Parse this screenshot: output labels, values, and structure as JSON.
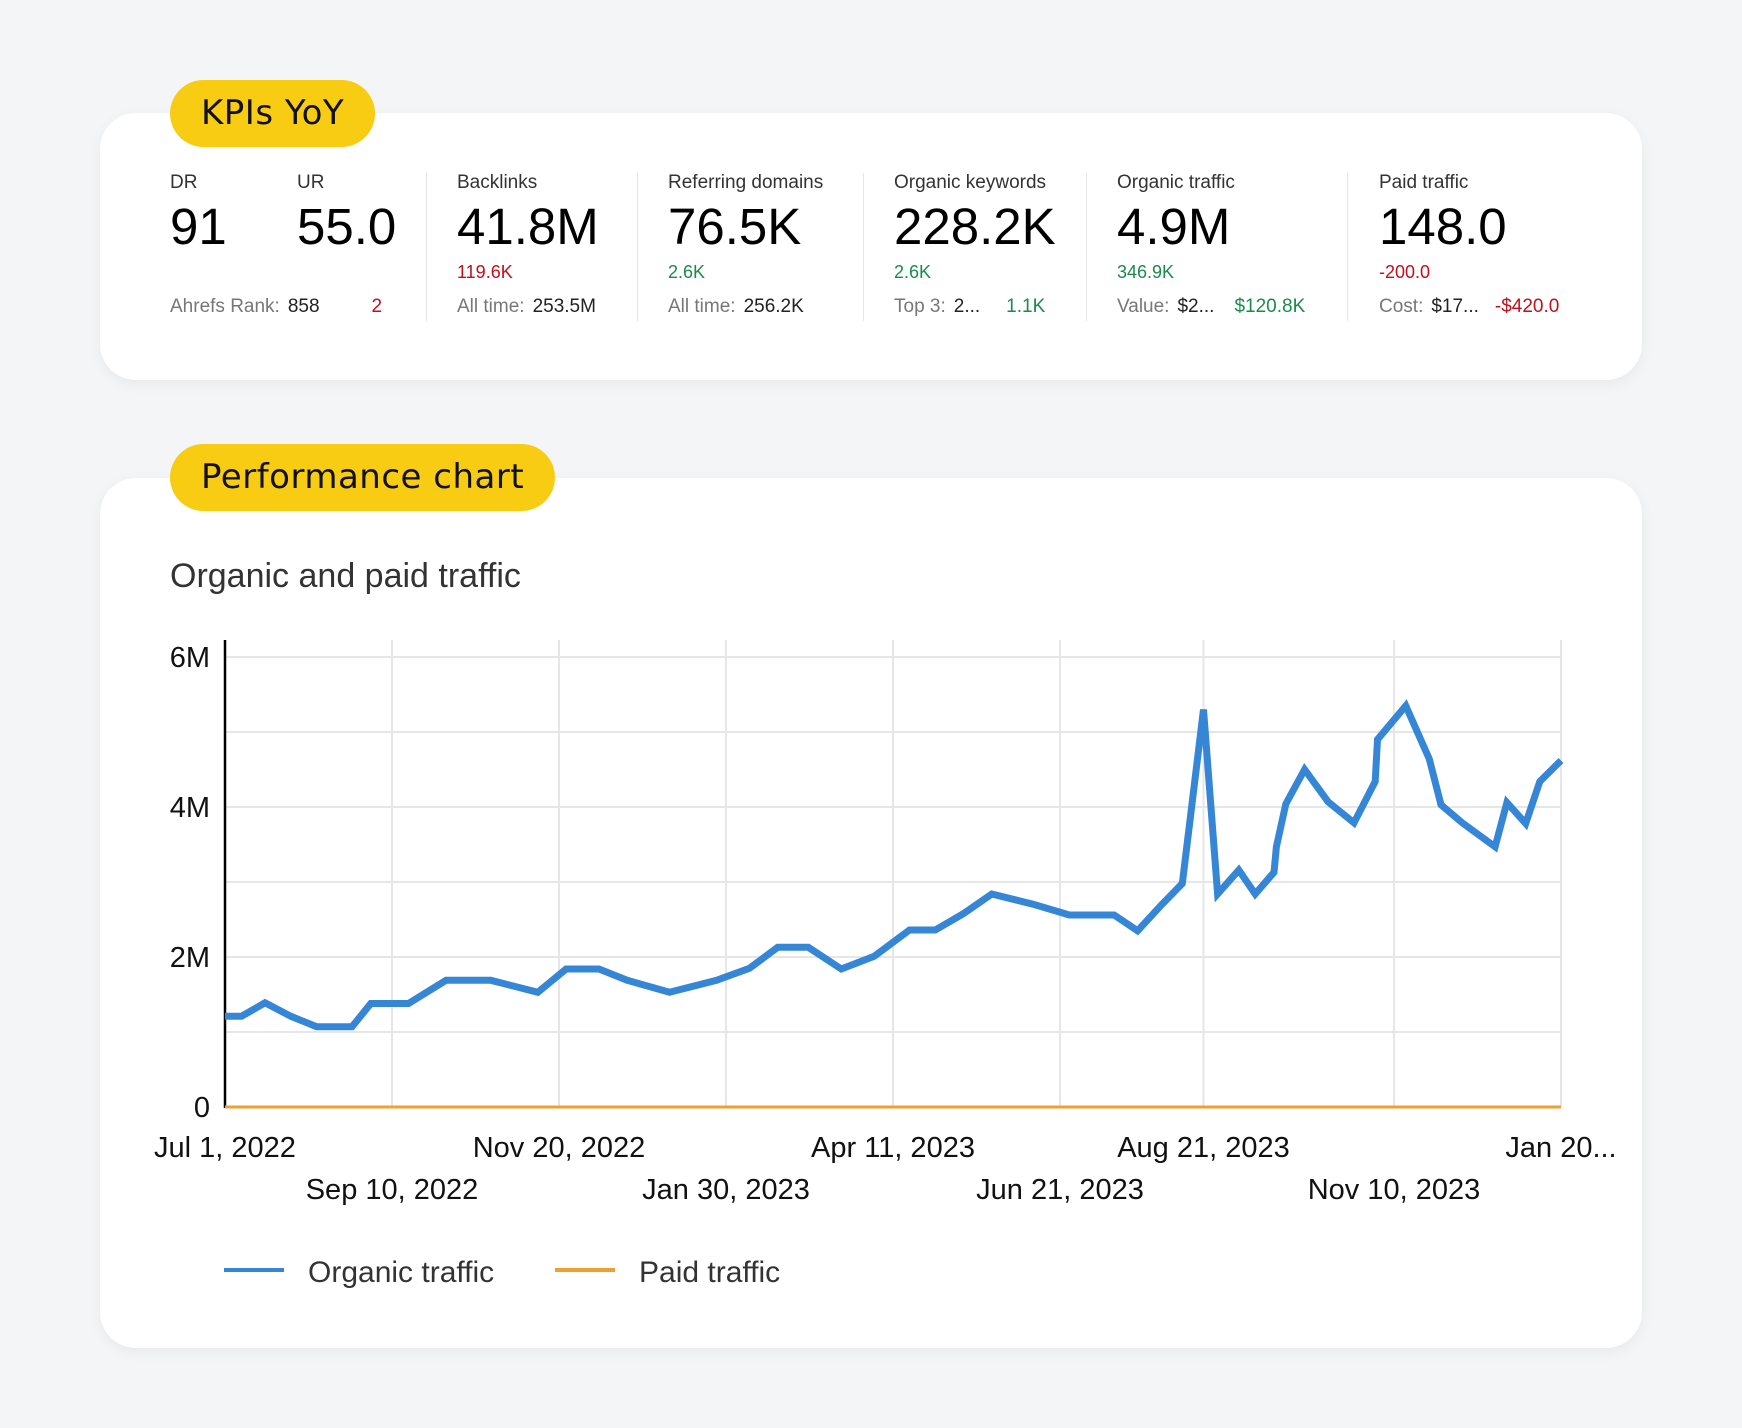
{
  "kpis": {
    "badge": "KPIs YoY",
    "dr": {
      "label": "DR",
      "value": "91"
    },
    "ur": {
      "label": "UR",
      "value": "55.0"
    },
    "ahrefs_rank": {
      "label": "Ahrefs Rank:",
      "value": "858",
      "delta": "2",
      "delta_color": "red"
    },
    "backlinks": {
      "label": "Backlinks",
      "value": "41.8M",
      "delta": "119.6K",
      "foot_label": "All time:",
      "foot_value": "253.5M"
    },
    "referring_domains": {
      "label": "Referring domains",
      "value": "76.5K",
      "delta": "2.6K",
      "foot_label": "All time:",
      "foot_value": "256.2K"
    },
    "organic_keywords": {
      "label": "Organic keywords",
      "value": "228.2K",
      "delta": "2.6K",
      "foot_label": "Top 3:",
      "foot_value": "2...",
      "foot_delta": "1.1K"
    },
    "organic_traffic": {
      "label": "Organic traffic",
      "value": "4.9M",
      "delta": "346.9K",
      "foot_label": "Value:",
      "foot_value": "$2...",
      "foot_delta": "$120.8K"
    },
    "paid_traffic": {
      "label": "Paid traffic",
      "value": "148.0",
      "delta": "-200.0",
      "foot_label": "Cost:",
      "foot_value": "$17...",
      "foot_delta": "-$420.0"
    },
    "colors": {
      "negative": "#c0101c",
      "positive": "#1b8a4c",
      "badge": "#f8cc12"
    }
  },
  "performance": {
    "badge": "Performance chart"
  },
  "chart_data": {
    "type": "line",
    "title": "Organic and paid traffic",
    "x_type": "date",
    "xlim": [
      "2022-07-01",
      "2024-01-20"
    ],
    "ylim": [
      0,
      6000000
    ],
    "y_ticks": [
      {
        "value": 0,
        "label": "0"
      },
      {
        "value": 2000000,
        "label": "2M"
      },
      {
        "value": 4000000,
        "label": "4M"
      },
      {
        "value": 6000000,
        "label": "6M"
      }
    ],
    "y_grid_step": 1000000,
    "x_ticks": [
      {
        "date": "2022-07-01",
        "label": "Jul 1, 2022",
        "row": 0
      },
      {
        "date": "2022-09-10",
        "label": "Sep 10, 2022",
        "row": 1
      },
      {
        "date": "2022-11-20",
        "label": "Nov 20, 2022",
        "row": 0
      },
      {
        "date": "2023-01-30",
        "label": "Jan 30, 2023",
        "row": 1
      },
      {
        "date": "2023-04-11",
        "label": "Apr 11, 2023",
        "row": 0
      },
      {
        "date": "2023-06-21",
        "label": "Jun 21, 2023",
        "row": 1
      },
      {
        "date": "2023-08-21",
        "label": "Aug 21, 2023",
        "row": 0
      },
      {
        "date": "2023-11-10",
        "label": "Nov 10, 2023",
        "row": 1
      },
      {
        "date": "2024-01-20",
        "label": "Jan 20...",
        "row": 0
      }
    ],
    "grid": true,
    "legend_placement": "bottom-left",
    "series": [
      {
        "name": "Organic traffic",
        "color": "#3586d6",
        "points": [
          [
            "2022-07-01",
            1210000
          ],
          [
            "2022-07-08",
            1210000
          ],
          [
            "2022-07-18",
            1390000
          ],
          [
            "2022-07-29",
            1210000
          ],
          [
            "2022-08-09",
            1070000
          ],
          [
            "2022-08-24",
            1070000
          ],
          [
            "2022-09-01",
            1380000
          ],
          [
            "2022-09-17",
            1380000
          ],
          [
            "2022-10-03",
            1690000
          ],
          [
            "2022-10-22",
            1690000
          ],
          [
            "2022-11-11",
            1530000
          ],
          [
            "2022-11-23",
            1840000
          ],
          [
            "2022-12-07",
            1840000
          ],
          [
            "2022-12-19",
            1690000
          ],
          [
            "2023-01-06",
            1530000
          ],
          [
            "2023-01-26",
            1690000
          ],
          [
            "2023-02-09",
            1850000
          ],
          [
            "2023-02-21",
            2130000
          ],
          [
            "2023-03-06",
            2130000
          ],
          [
            "2023-03-20",
            1840000
          ],
          [
            "2023-04-03",
            2010000
          ],
          [
            "2023-04-18",
            2360000
          ],
          [
            "2023-04-29",
            2360000
          ],
          [
            "2023-05-11",
            2580000
          ],
          [
            "2023-05-23",
            2840000
          ],
          [
            "2023-06-10",
            2700000
          ],
          [
            "2023-06-25",
            2560000
          ],
          [
            "2023-07-14",
            2560000
          ],
          [
            "2023-07-24",
            2350000
          ],
          [
            "2023-08-03",
            2690000
          ],
          [
            "2023-08-12",
            2980000
          ],
          [
            "2023-08-21",
            5300000
          ],
          [
            "2023-08-27",
            2840000
          ],
          [
            "2023-09-05",
            3160000
          ],
          [
            "2023-09-12",
            2840000
          ],
          [
            "2023-09-20",
            3130000
          ],
          [
            "2023-09-21",
            3470000
          ],
          [
            "2023-09-25",
            4040000
          ],
          [
            "2023-10-03",
            4500000
          ],
          [
            "2023-10-13",
            4070000
          ],
          [
            "2023-10-24",
            3790000
          ],
          [
            "2023-11-02",
            4340000
          ],
          [
            "2023-11-03",
            4900000
          ],
          [
            "2023-11-15",
            5350000
          ],
          [
            "2023-11-25",
            4640000
          ],
          [
            "2023-11-30",
            4030000
          ],
          [
            "2023-12-09",
            3790000
          ],
          [
            "2023-12-23",
            3470000
          ],
          [
            "2023-12-28",
            4060000
          ],
          [
            "2024-01-05",
            3780000
          ],
          [
            "2024-01-11",
            4340000
          ],
          [
            "2024-01-20",
            4620000
          ]
        ]
      },
      {
        "name": "Paid traffic",
        "color": "#f0a030",
        "points": [
          [
            "2022-07-01",
            148
          ],
          [
            "2024-01-20",
            148
          ]
        ]
      }
    ]
  }
}
